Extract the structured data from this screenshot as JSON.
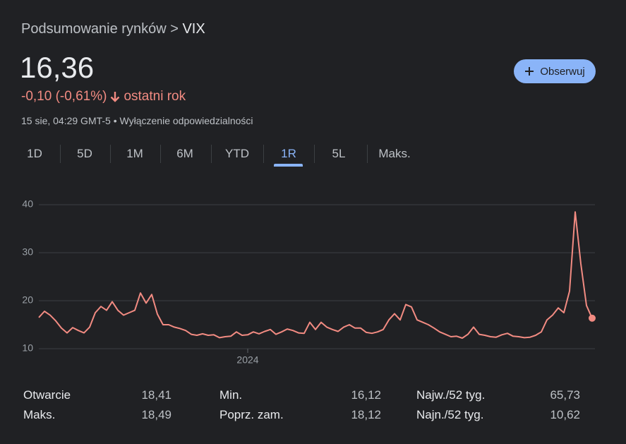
{
  "header": {
    "breadcrumb_prefix": "Podsumowanie rynków >",
    "symbol": "VIX"
  },
  "price": "16,36",
  "change": {
    "value": "-0,10 (-0,61%)",
    "period": "ostatni rok"
  },
  "timestamp": {
    "time": "15 sie, 04:29 GMT-5 •",
    "disclaimer": "Wyłączenie odpowiedzialności"
  },
  "follow_button": "Obserwuj",
  "tabs": [
    "1D",
    "5D",
    "1M",
    "6M",
    "YTD",
    "1R",
    "5L",
    "Maks."
  ],
  "selected_tab": 5,
  "chart_data": {
    "type": "line",
    "color": "#f28b82",
    "categories": [
      null,
      null,
      null,
      null,
      null,
      null,
      null,
      null,
      null,
      null,
      null,
      null,
      null,
      null,
      null,
      null,
      null,
      null,
      null,
      null,
      null,
      null,
      null,
      null,
      null,
      null,
      null,
      null,
      null,
      null,
      null,
      null,
      null,
      null,
      null,
      null,
      null,
      "2024",
      null,
      null,
      null,
      null,
      null,
      null,
      null,
      null,
      null,
      null,
      null,
      null,
      null,
      null,
      null,
      null,
      null,
      null,
      null,
      null,
      null,
      null,
      null,
      null,
      null,
      null,
      null,
      null,
      null,
      null,
      null,
      null,
      null,
      null,
      null,
      null,
      null,
      null,
      null,
      null,
      null,
      null,
      null,
      null,
      null,
      null,
      null,
      null,
      null,
      null,
      null,
      null,
      null,
      null,
      null,
      null,
      null,
      null,
      null,
      null,
      null
    ],
    "values": [
      16.5,
      17.8,
      17,
      15.8,
      14.3,
      13.3,
      14.4,
      13.8,
      13.3,
      14.5,
      17.5,
      18.8,
      18,
      19.8,
      18,
      17,
      17.5,
      18,
      21.6,
      19.5,
      21.3,
      17.2,
      15,
      15,
      14.5,
      14.2,
      13.8,
      13,
      12.8,
      13.1,
      12.8,
      12.9,
      12.3,
      12.5,
      12.6,
      13.5,
      12.8,
      12.9,
      13.5,
      13.1,
      13.6,
      14,
      13,
      13.5,
      14.1,
      13.8,
      13.3,
      13.2,
      15.5,
      14,
      15.5,
      14.5,
      14,
      13.6,
      14.5,
      15,
      14.3,
      14.3,
      13.4,
      13.2,
      13.5,
      14,
      16,
      17.3,
      16,
      19.2,
      18.7,
      16,
      15.5,
      15,
      14.3,
      13.5,
      13,
      12.5,
      12.6,
      12.2,
      13,
      14.5,
      13,
      12.8,
      12.5,
      12.4,
      12.9,
      13.2,
      12.6,
      12.5,
      12.3,
      12.4,
      12.8,
      13.5,
      16,
      17,
      18.5,
      17.5,
      22,
      38.5,
      27.7,
      19,
      16.36
    ],
    "ylim": [
      10,
      40
    ],
    "yticks": [
      10,
      20,
      30,
      40
    ],
    "grid": true
  },
  "stats": [
    {
      "label": "Otwarcie",
      "value": "18,41"
    },
    {
      "label": "Maks.",
      "value": "18,49"
    },
    {
      "label": "Min.",
      "value": "16,12"
    },
    {
      "label": "Poprz. zam.",
      "value": "18,12"
    },
    {
      "label": "Najw./52 tyg.",
      "value": "65,73"
    },
    {
      "label": "Najn./52 tyg.",
      "value": "10,62"
    }
  ]
}
